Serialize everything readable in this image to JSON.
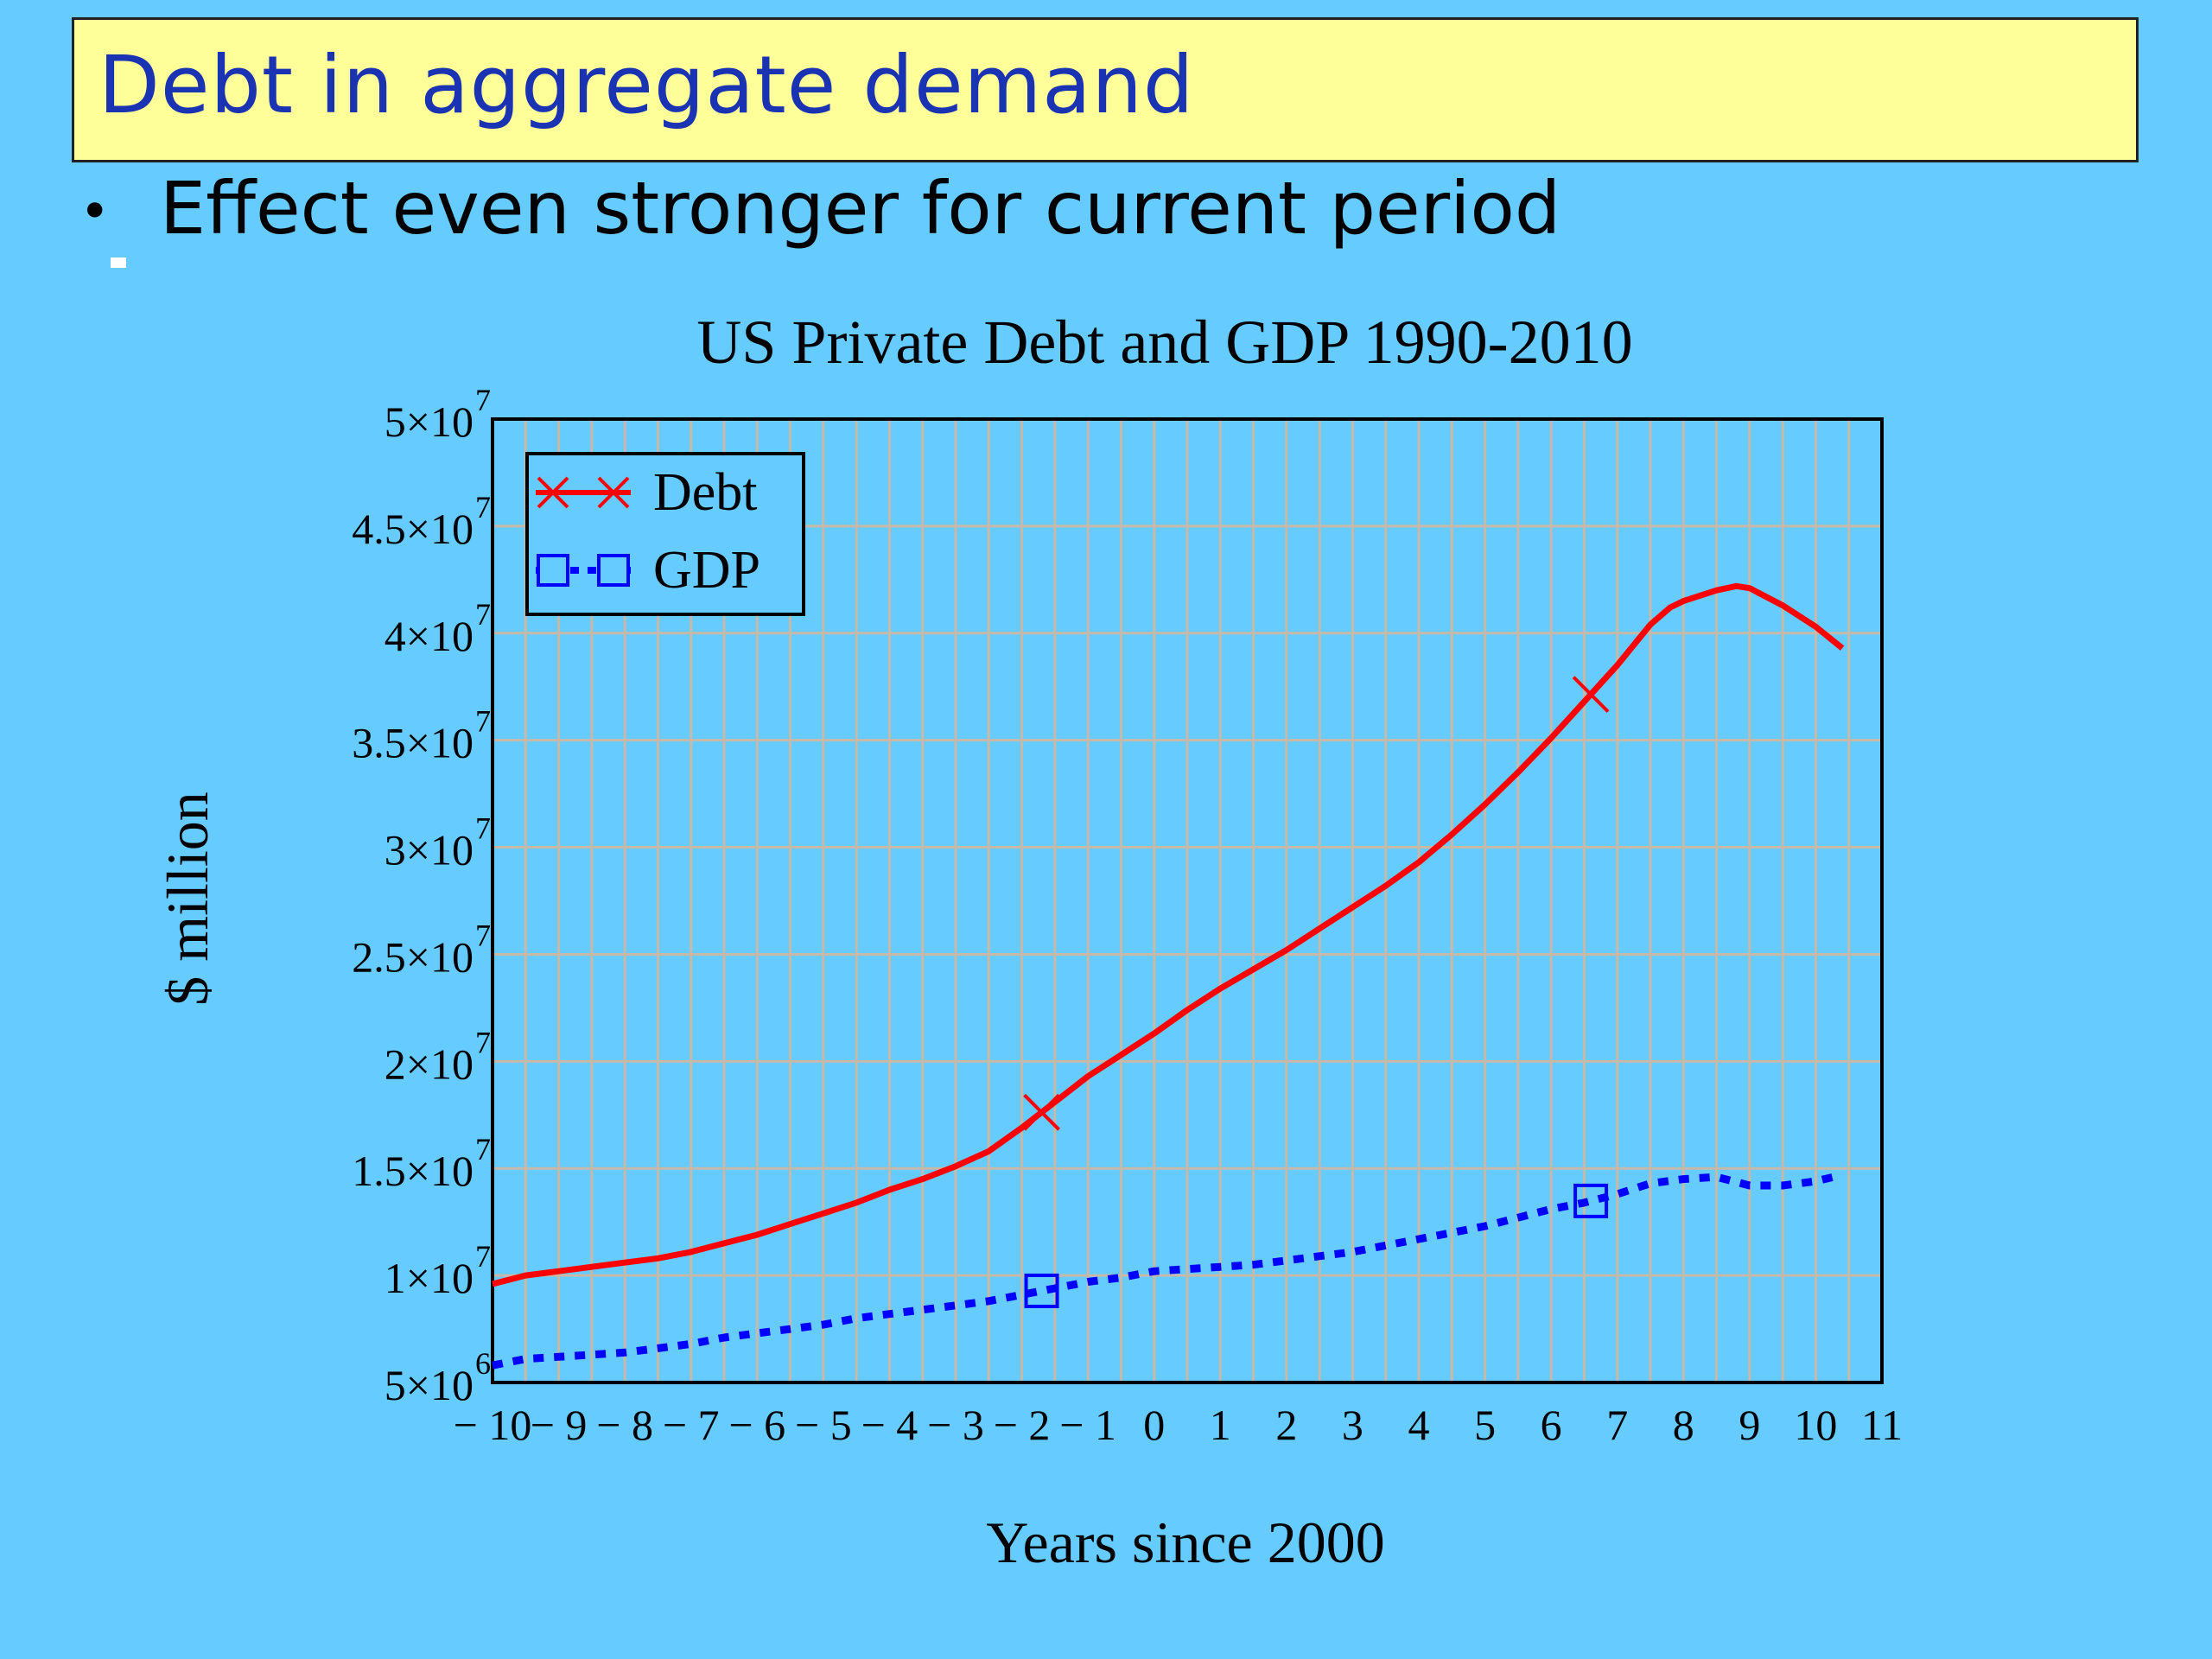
{
  "slide": {
    "title": "Debt in aggregate demand",
    "bullet": "Effect even stronger for current period"
  },
  "chart_data": {
    "type": "line",
    "title": "US Private Debt and GDP 1990-2010",
    "xlabel": "Years since 2000",
    "ylabel": "$ million",
    "xlim": [
      -10,
      11
    ],
    "ylim": [
      5000000,
      50000000
    ],
    "x_ticks": [
      {
        "value": -10,
        "label": "− 10"
      },
      {
        "value": -9,
        "label": "− 9"
      },
      {
        "value": -8,
        "label": "− 8"
      },
      {
        "value": -7,
        "label": "− 7"
      },
      {
        "value": -6,
        "label": "− 6"
      },
      {
        "value": -5,
        "label": "− 5"
      },
      {
        "value": -4,
        "label": "− 4"
      },
      {
        "value": -3,
        "label": "− 3"
      },
      {
        "value": -2,
        "label": "− 2"
      },
      {
        "value": -1,
        "label": "− 1"
      },
      {
        "value": 0,
        "label": "0"
      },
      {
        "value": 1,
        "label": "1"
      },
      {
        "value": 2,
        "label": "2"
      },
      {
        "value": 3,
        "label": "3"
      },
      {
        "value": 4,
        "label": "4"
      },
      {
        "value": 5,
        "label": "5"
      },
      {
        "value": 6,
        "label": "6"
      },
      {
        "value": 7,
        "label": "7"
      },
      {
        "value": 8,
        "label": "8"
      },
      {
        "value": 9,
        "label": "9"
      },
      {
        "value": 10,
        "label": "10"
      },
      {
        "value": 11,
        "label": "11"
      }
    ],
    "y_ticks": [
      {
        "value": 5000000,
        "mant": "5",
        "exp": "6"
      },
      {
        "value": 10000000,
        "mant": "1",
        "exp": "7"
      },
      {
        "value": 15000000,
        "mant": "1.5",
        "exp": "7"
      },
      {
        "value": 20000000,
        "mant": "2",
        "exp": "7"
      },
      {
        "value": 25000000,
        "mant": "2.5",
        "exp": "7"
      },
      {
        "value": 30000000,
        "mant": "3",
        "exp": "7"
      },
      {
        "value": 35000000,
        "mant": "3.5",
        "exp": "7"
      },
      {
        "value": 40000000,
        "mant": "4",
        "exp": "7"
      },
      {
        "value": 45000000,
        "mant": "4.5",
        "exp": "7"
      },
      {
        "value": 50000000,
        "mant": "5",
        "exp": "7"
      }
    ],
    "times_sign": "×10",
    "grid": true,
    "legend_position": "top-left",
    "series": [
      {
        "name": "Debt",
        "color": "#ff0000",
        "style": "solid",
        "marker": "x",
        "markers_at": [
          -1.7,
          6.6
        ],
        "x": [
          -10,
          -9.5,
          -9,
          -8.5,
          -8,
          -7.5,
          -7,
          -6.5,
          -6,
          -5.5,
          -5,
          -4.5,
          -4,
          -3.5,
          -3,
          -2.5,
          -2,
          -1.5,
          -1,
          -0.5,
          0,
          0.5,
          1,
          1.5,
          2,
          2.5,
          3,
          3.5,
          4,
          4.5,
          5,
          5.5,
          6,
          6.5,
          7,
          7.5,
          7.8,
          8,
          8.5,
          8.8,
          9,
          9.5,
          10,
          10.4
        ],
        "y": [
          9600000,
          10000000,
          10200000,
          10400000,
          10600000,
          10800000,
          11100000,
          11500000,
          11900000,
          12400000,
          12900000,
          13400000,
          14000000,
          14500000,
          15100000,
          15800000,
          16900000,
          18100000,
          19300000,
          20300000,
          21300000,
          22400000,
          23400000,
          24300000,
          25200000,
          26200000,
          27200000,
          28200000,
          29300000,
          30600000,
          32000000,
          33500000,
          35100000,
          36800000,
          38500000,
          40400000,
          41200000,
          41500000,
          42000000,
          42200000,
          42100000,
          41300000,
          40300000,
          39300000
        ]
      },
      {
        "name": "GDP",
        "color": "#0000ff",
        "style": "dotted",
        "marker": "square",
        "markers_at": [
          -1.7,
          6.6
        ],
        "x": [
          -10,
          -9.5,
          -9,
          -8.5,
          -8,
          -7.5,
          -7,
          -6.5,
          -6,
          -5.5,
          -5,
          -4.5,
          -4,
          -3.5,
          -3,
          -2.5,
          -2,
          -1.5,
          -1,
          -0.5,
          0,
          0.5,
          1,
          1.5,
          2,
          2.5,
          3,
          3.5,
          4,
          4.5,
          5,
          5.5,
          6,
          6.5,
          7,
          7.5,
          8,
          8.5,
          9,
          9.5,
          10,
          10.4
        ],
        "y": [
          5800000,
          6100000,
          6200000,
          6300000,
          6400000,
          6600000,
          6800000,
          7100000,
          7300000,
          7500000,
          7700000,
          8000000,
          8200000,
          8400000,
          8600000,
          8800000,
          9100000,
          9400000,
          9700000,
          9900000,
          10200000,
          10300000,
          10400000,
          10500000,
          10700000,
          10900000,
          11100000,
          11400000,
          11700000,
          12000000,
          12300000,
          12700000,
          13100000,
          13400000,
          13800000,
          14300000,
          14500000,
          14600000,
          14200000,
          14200000,
          14400000,
          14700000
        ]
      }
    ]
  }
}
